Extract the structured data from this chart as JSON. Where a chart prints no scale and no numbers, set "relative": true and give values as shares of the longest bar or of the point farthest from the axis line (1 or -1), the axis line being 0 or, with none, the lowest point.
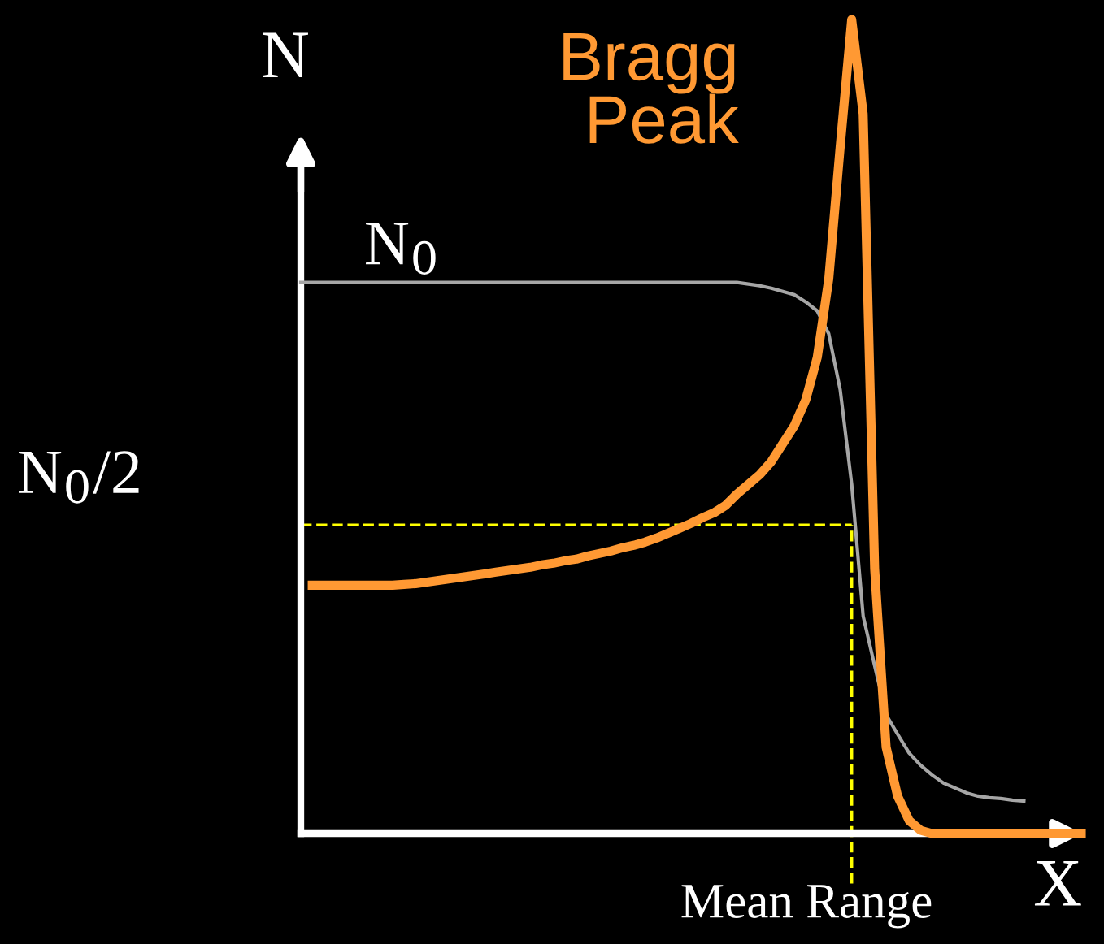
{
  "chart_data": {
    "type": "line",
    "xlabel": "X",
    "ylabel": "N",
    "relative": true,
    "legend": false,
    "marker": "none",
    "line_style": "solid",
    "categories": [
      null,
      null,
      null,
      null,
      null,
      null,
      null,
      null,
      null,
      null,
      null,
      null,
      null,
      null,
      null,
      null,
      null,
      null,
      null,
      null,
      null,
      null,
      null,
      null,
      null,
      null,
      null,
      null,
      null,
      null,
      null,
      null,
      null,
      null,
      null,
      null,
      null,
      null,
      null,
      null,
      null,
      null,
      null,
      null,
      null,
      null,
      null,
      null,
      null,
      null,
      null,
      null,
      null,
      null,
      null,
      null,
      null,
      null,
      null,
      null,
      null,
      null,
      null,
      null,
      null,
      null,
      null,
      null,
      null
    ],
    "series": [
      {
        "color": "#a6a6a6",
        "values": [
          0.677,
          0.677,
          0.677,
          0.677,
          0.677,
          0.677,
          0.677,
          0.677,
          0.677,
          0.677,
          0.677,
          0.677,
          0.677,
          0.677,
          0.677,
          0.677,
          0.677,
          0.677,
          0.677,
          0.677,
          0.677,
          0.677,
          0.677,
          0.677,
          0.677,
          0.677,
          0.677,
          0.677,
          0.677,
          0.677,
          0.677,
          0.677,
          0.677,
          0.677,
          0.677,
          0.677,
          0.677,
          0.677,
          0.677,
          0.675,
          0.673,
          0.67,
          0.666,
          0.662,
          0.653,
          0.642,
          0.614,
          0.545,
          0.429,
          0.267,
          0.206,
          0.146,
          0.122,
          0.099,
          0.084,
          0.072,
          0.062,
          0.056,
          0.05,
          0.046,
          0.044,
          0.043,
          0.041,
          0.04,
          null,
          null,
          null,
          null,
          null
        ]
      },
      {
        "color": "#ff9933",
        "values": [
          null,
          0.305,
          0.305,
          0.305,
          0.305,
          0.305,
          0.305,
          0.305,
          0.305,
          0.306,
          0.307,
          0.309,
          0.311,
          0.313,
          0.315,
          0.317,
          0.319,
          0.321,
          0.323,
          0.325,
          0.327,
          0.33,
          0.332,
          0.335,
          0.337,
          0.341,
          0.344,
          0.347,
          0.351,
          0.354,
          0.358,
          0.363,
          0.369,
          0.375,
          0.381,
          0.388,
          0.394,
          0.403,
          0.417,
          0.429,
          0.441,
          0.457,
          0.479,
          0.501,
          0.533,
          0.585,
          0.681,
          0.844,
          1.0,
          0.884,
          0.325,
          0.106,
          0.046,
          0.016,
          0.004,
          0,
          0,
          0,
          0,
          0,
          0,
          0,
          0,
          0,
          0,
          0,
          0,
          0,
          0
        ]
      }
    ],
    "ref_lines": [
      {
        "axis": "y",
        "value": 0.379,
        "color": "#ffff00",
        "line_style": "dashed"
      }
    ],
    "annotations": [
      "Bragg\nPeak",
      "N$_{0}$",
      "N$_{0}$/2",
      "Mean Range"
    ]
  }
}
